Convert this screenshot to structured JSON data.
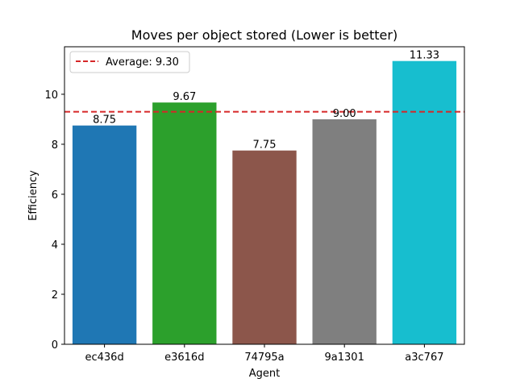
{
  "chart_data": {
    "type": "bar",
    "title": "Moves per object stored (Lower is better)",
    "xlabel": "Agent",
    "ylabel": "Efficiency",
    "categories": [
      "ec436d",
      "e3616d",
      "74795a",
      "9a1301",
      "a3c767"
    ],
    "values": [
      8.75,
      9.67,
      7.75,
      9.0,
      11.33
    ],
    "value_labels": [
      "8.75",
      "9.67",
      "7.75",
      "9.00",
      "11.33"
    ],
    "bar_colors": [
      "#1f77b4",
      "#2ca02c",
      "#8c564b",
      "#7f7f7f",
      "#17becf"
    ],
    "ylim": [
      0,
      11.9
    ],
    "yticks": [
      0,
      2,
      4,
      6,
      8,
      10
    ],
    "ytick_labels": [
      "0",
      "2",
      "4",
      "6",
      "8",
      "10"
    ],
    "grid": false,
    "reference_line": {
      "value": 9.3,
      "color": "#d62728",
      "style": "dashed"
    },
    "legend": {
      "position": "top-left",
      "entries": [
        "Average: 9.30"
      ]
    }
  }
}
